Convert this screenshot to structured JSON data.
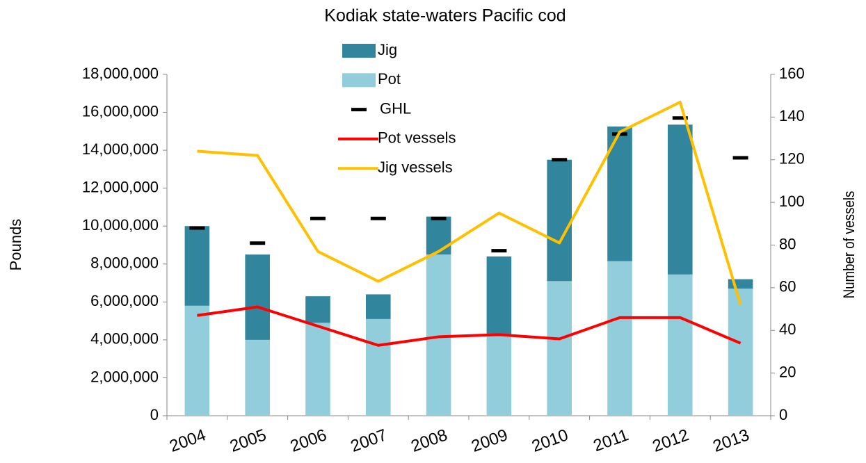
{
  "chart_data": {
    "type": "combo",
    "title": "Kodiak state-waters  Pacific cod",
    "y_label": "Pounds",
    "y2_label": "Number of vessels",
    "categories": [
      "2004",
      "2005",
      "2006",
      "2007",
      "2008",
      "2009",
      "2010",
      "2011",
      "2012",
      "2013"
    ],
    "series": [
      {
        "name": "Jig",
        "kind": "bar",
        "color": "#31859c",
        "values": [
          4200000,
          4500000,
          1400000,
          1300000,
          2000000,
          4100000,
          6400000,
          7100000,
          7900000,
          500000
        ]
      },
      {
        "name": "Pot",
        "kind": "bar",
        "color": "#92cddc",
        "values": [
          5800000,
          4000000,
          4900000,
          5100000,
          8500000,
          4300000,
          7100000,
          8150000,
          7450000,
          6700000
        ]
      },
      {
        "name": "GHL",
        "kind": "marker",
        "color": "#000000",
        "values": [
          9900000,
          9100000,
          10400000,
          10400000,
          10400000,
          8700000,
          13500000,
          14850000,
          15700000,
          13600000
        ]
      },
      {
        "name": "Pot vessels",
        "kind": "line",
        "axis": "y2",
        "color": "#ff0000",
        "values": [
          47,
          51,
          42,
          33,
          37,
          38,
          36,
          46,
          46,
          34
        ]
      },
      {
        "name": "Jig vessels",
        "kind": "line",
        "axis": "y2",
        "color": "#ffc000",
        "values": [
          124,
          122,
          77,
          63,
          77,
          95,
          81,
          133,
          147,
          52
        ]
      }
    ],
    "ylim": [
      0,
      18000000
    ],
    "yticks": [
      0,
      {
        "value": 2000000,
        "label": "2,000,000"
      },
      {
        "value": 4000000,
        "label": "4,000,000"
      },
      {
        "value": 6000000,
        "label": "6,000,000"
      },
      {
        "value": 8000000,
        "label": "8,000,000"
      },
      {
        "value": 10000000,
        "label": "10,000,000"
      },
      {
        "value": 12000000,
        "label": "12,000,000"
      },
      {
        "value": 14000000,
        "label": "14,000,000"
      },
      {
        "value": 16000000,
        "label": "16,000,000"
      },
      {
        "value": 18000000,
        "label": "18,000,000"
      }
    ],
    "y2lim": [
      0,
      160
    ],
    "y2ticks": [
      0,
      20,
      40,
      60,
      80,
      100,
      120,
      140,
      160
    ],
    "legend": "top"
  }
}
